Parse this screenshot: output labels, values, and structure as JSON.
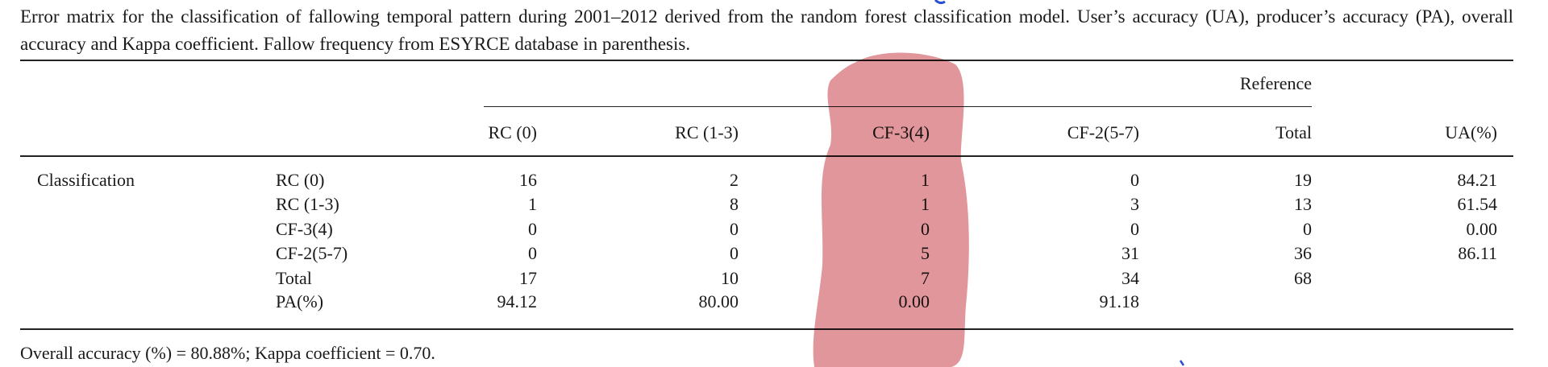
{
  "caption": "Error matrix for the classification of fallowing temporal pattern during 2001–2012 derived from the random forest classification model. User’s accuracy (UA), producer’s accuracy (PA), overall accuracy and Kappa coefficient. Fallow frequency from ESYRCE database in parenthesis.",
  "table": {
    "group_header": "Reference",
    "columns": [
      "RC (0)",
      "RC (1-3)",
      "CF-3(4)",
      "CF-2(5-7)",
      "Total",
      "UA(%)"
    ],
    "row_group": "Classification",
    "rows": [
      {
        "label": "RC (0)",
        "cells": [
          "16",
          "2",
          "1",
          "0",
          "19",
          "84.21"
        ]
      },
      {
        "label": "RC (1-3)",
        "cells": [
          "1",
          "8",
          "1",
          "3",
          "13",
          "61.54"
        ]
      },
      {
        "label": "CF-3(4)",
        "cells": [
          "0",
          "0",
          "0",
          "0",
          "0",
          "0.00"
        ]
      },
      {
        "label": "CF-2(5-7)",
        "cells": [
          "0",
          "0",
          "5",
          "31",
          "36",
          "86.11"
        ]
      },
      {
        "label": "Total",
        "cells": [
          "17",
          "10",
          "7",
          "34",
          "68"
        ]
      },
      {
        "label": "PA(%)",
        "cells": [
          "94.12",
          "80.00",
          "0.00",
          "91.18"
        ]
      }
    ]
  },
  "footer": "Overall accuracy (%) = 80.88%; Kappa coefficient = 0.70."
}
